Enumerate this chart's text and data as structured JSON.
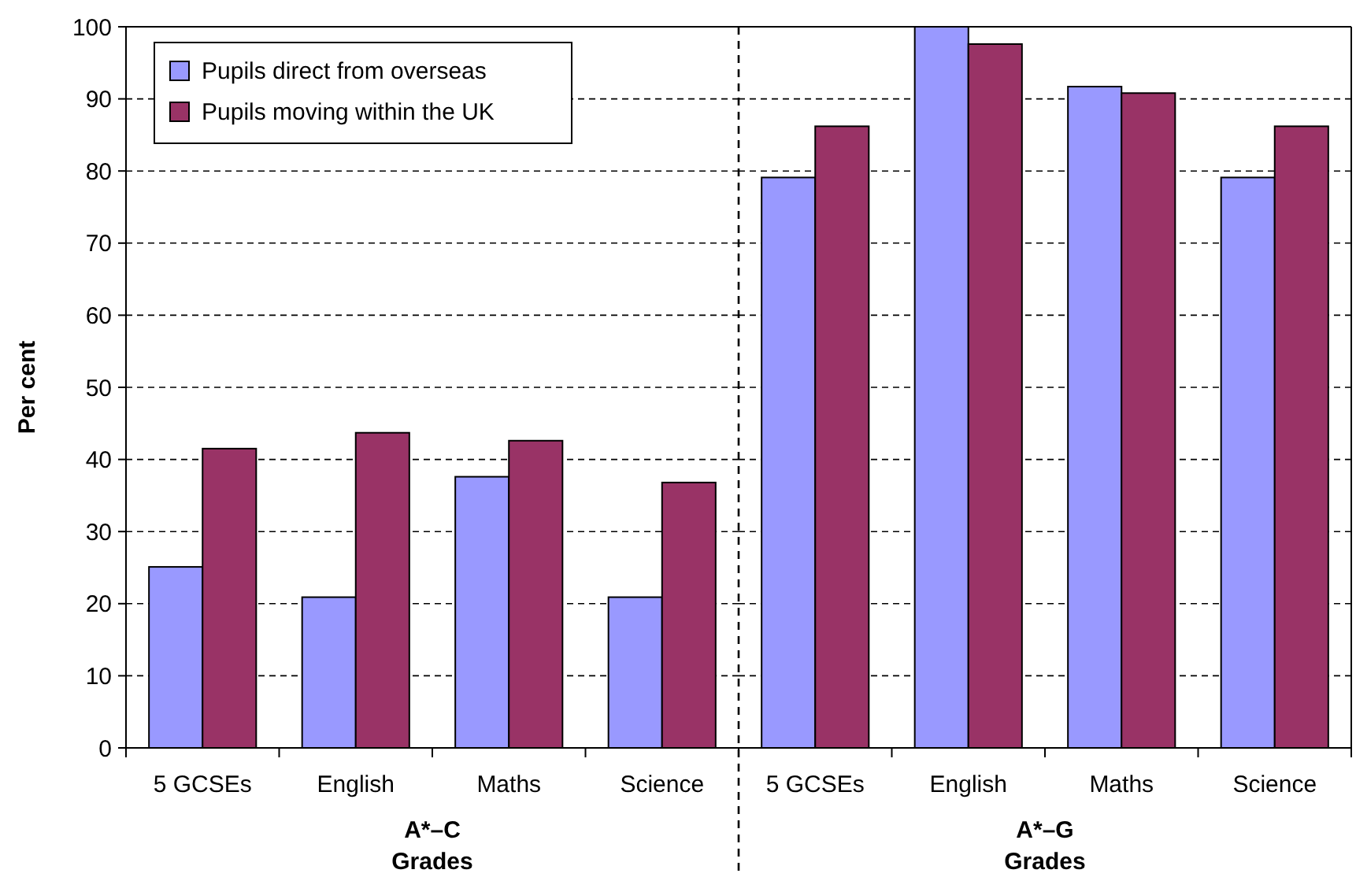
{
  "chart_data": [
    {
      "type": "bar",
      "ylabel": "Per cent",
      "xlabel": "A*–C\nGrades",
      "categories": [
        "5 GCSEs",
        "English",
        "Maths",
        "Science"
      ],
      "series": [
        {
          "name": "Pupils direct from overseas",
          "color": "#9999ff",
          "values": [
            25.1,
            20.9,
            37.6,
            20.9
          ]
        },
        {
          "name": "Pupils moving within the UK",
          "color": "#993366",
          "values": [
            41.5,
            43.7,
            42.6,
            36.8
          ]
        }
      ],
      "ylim": [
        0,
        100
      ],
      "yticks": [
        0,
        10,
        20,
        30,
        40,
        50,
        60,
        70,
        80,
        90,
        100
      ],
      "grid": "y",
      "legend": "top left"
    },
    {
      "type": "bar",
      "xlabel": "A*–G\nGrades",
      "categories": [
        "5 GCSEs",
        "English",
        "Maths",
        "Science"
      ],
      "series": [
        {
          "color": "#9999ff",
          "values": [
            79.1,
            100,
            91.7,
            79.1
          ]
        },
        {
          "color": "#993366",
          "values": [
            86.2,
            97.6,
            90.8,
            86.2
          ]
        }
      ],
      "ylim": [
        0,
        100
      ],
      "yticks": [
        0,
        10,
        20,
        30,
        40,
        50,
        60,
        70,
        80,
        90,
        100
      ],
      "grid": "y",
      "tick_labels": "x"
    }
  ]
}
